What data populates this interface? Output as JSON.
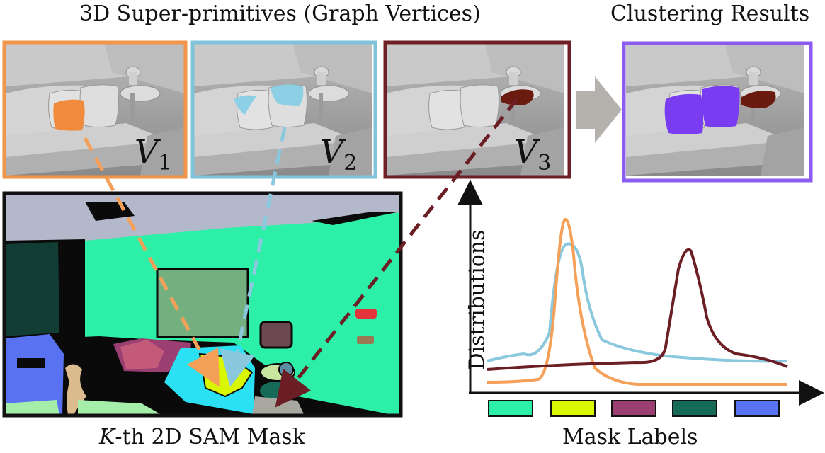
{
  "header": {
    "left_title": "3D Super-primitives (Graph Vertices)",
    "right_title": "Clustering Results"
  },
  "panels": [
    {
      "label": "V",
      "subscript": "1",
      "border_color": "#f0954a",
      "highlight_color": "#f08a3c"
    },
    {
      "label": "V",
      "subscript": "2",
      "border_color": "#7ec3d9",
      "highlight_color": "#8dd0e6"
    },
    {
      "label": "V",
      "subscript": "3",
      "border_color": "#6e2026",
      "highlight_color": "#6b1a10"
    }
  ],
  "result_panel": {
    "border_color": "#8a5cf0",
    "pillow_color": "#7a3cf0",
    "table_color": "#6b1a10"
  },
  "sam_mask": {
    "caption_italic": "K",
    "caption_rest": "-th 2D SAM Mask"
  },
  "distribution_chart": {
    "ylabel": "Distributions",
    "xlabel": "Mask Labels",
    "label_swatches": [
      "#2cf0a8",
      "#d8f700",
      "#9b3f72",
      "#166b58",
      "#5872f2"
    ]
  },
  "colors": {
    "orange": "#f5a059",
    "blue": "#8ac9dd",
    "maroon": "#6b1e24",
    "arrow_gray": "#b5b2ae",
    "border_dark": "#111111"
  }
}
